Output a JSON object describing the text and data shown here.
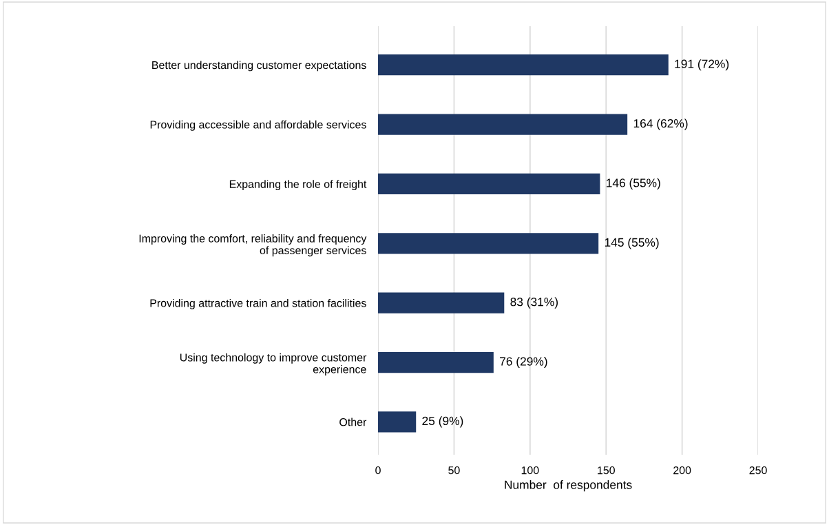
{
  "chart_data": {
    "type": "bar",
    "orientation": "horizontal",
    "xlabel": "Number  of respondents",
    "categories": [
      "Better understanding customer expectations",
      "Providing accessible and affordable services",
      "Expanding the role of freight",
      "Improving the comfort, reliability and frequency\nof passenger services",
      "Providing attractive train and station facilities",
      "Using technology to improve customer\nexperience",
      "Other"
    ],
    "values": [
      191,
      164,
      146,
      145,
      83,
      76,
      25
    ],
    "value_labels": [
      "191 (72%)",
      "164 (62%)",
      "146 (55%)",
      "145 (55%)",
      "83 (31%)",
      "76 (29%)",
      "25 (9%)"
    ],
    "color": "#1f3864",
    "xlim": [
      0,
      250
    ],
    "xticks": [
      0,
      50,
      100,
      150,
      200,
      250
    ],
    "grid": "x",
    "legend": false
  }
}
